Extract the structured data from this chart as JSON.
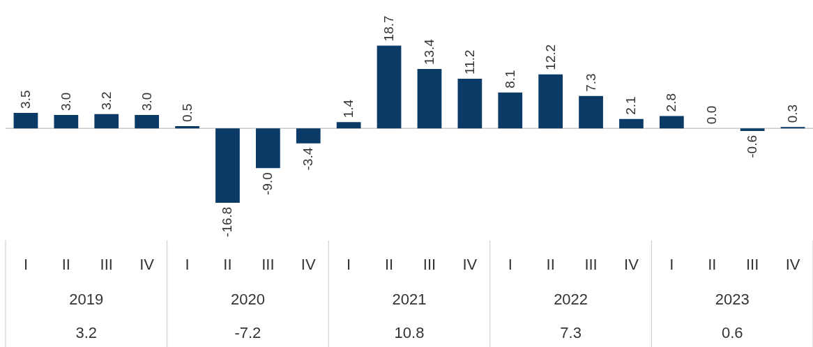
{
  "chart_data": {
    "type": "bar",
    "categories": [
      "I",
      "II",
      "III",
      "IV",
      "I",
      "II",
      "III",
      "IV",
      "I",
      "II",
      "III",
      "IV",
      "I",
      "II",
      "III",
      "IV",
      "I",
      "II",
      "III",
      "IV"
    ],
    "values": [
      3.5,
      3.0,
      3.2,
      3.0,
      0.5,
      -16.8,
      -9.0,
      -3.4,
      1.4,
      18.7,
      13.4,
      11.2,
      8.1,
      12.2,
      7.3,
      2.1,
      2.8,
      0.0,
      -0.6,
      0.3
    ],
    "color": "#0b3a66",
    "value_labels": [
      "3.5",
      "3.0",
      "3.2",
      "3.0",
      "0.5",
      "-16.8",
      "-9.0",
      "-3.4",
      "1.4",
      "18.7",
      "13.4",
      "11.2",
      "8.1",
      "12.2",
      "7.3",
      "2.1",
      "2.8",
      "0.0",
      "-0.6",
      "0.3"
    ],
    "annotations": [
      "2019",
      "3.2",
      "2020",
      "-7.2",
      "2021",
      "10.8",
      "2022",
      "7.3",
      "2023",
      "0.6"
    ]
  }
}
